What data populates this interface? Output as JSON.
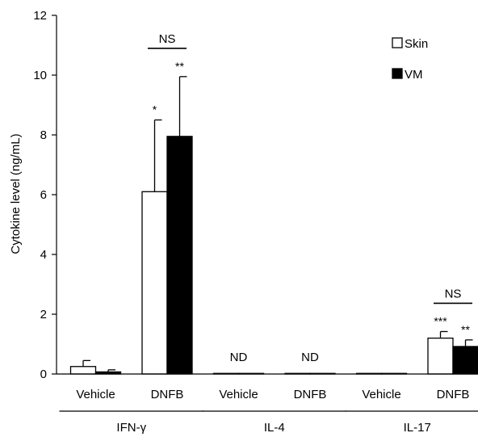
{
  "chart_data": {
    "type": "bar",
    "ylabel": "Cytokine level (ng/mL)",
    "ylim": [
      0,
      12
    ],
    "yticks": [
      0,
      2,
      4,
      6,
      8,
      10,
      12
    ],
    "categories": [
      "Vehicle",
      "DNFB",
      "Vehicle",
      "DNFB",
      "Vehicle",
      "DNFB"
    ],
    "groups": [
      {
        "label": "IFN-γ",
        "categories": [
          0,
          1
        ]
      },
      {
        "label": "IL-4",
        "categories": [
          2,
          3
        ]
      },
      {
        "label": "IL-17",
        "categories": [
          4,
          5
        ]
      }
    ],
    "series": [
      {
        "name": "Skin",
        "color": "#ffffff",
        "values": [
          0.25,
          6.1,
          0.02,
          0.02,
          0.02,
          1.2
        ],
        "errors": [
          0.2,
          2.4,
          0,
          0,
          0,
          0.22
        ]
      },
      {
        "name": "VM",
        "color": "#000000",
        "values": [
          0.07,
          7.95,
          0.02,
          0.02,
          0.02,
          0.92
        ],
        "errors": [
          0.07,
          2.0,
          0,
          0,
          0,
          0.22
        ]
      }
    ],
    "legend_position": "top-right",
    "annotations": [
      {
        "text": "*",
        "category": 1,
        "series": 0
      },
      {
        "text": "**",
        "category": 1,
        "series": 1
      },
      {
        "text": "***",
        "category": 5,
        "series": 0
      },
      {
        "text": "**",
        "category": 5,
        "series": 1
      }
    ],
    "center_labels": [
      {
        "text": "ND",
        "category": 2
      },
      {
        "text": "ND",
        "category": 3
      }
    ],
    "brackets": [
      {
        "text": "NS",
        "category": 1
      },
      {
        "text": "NS",
        "category": 5
      }
    ]
  }
}
